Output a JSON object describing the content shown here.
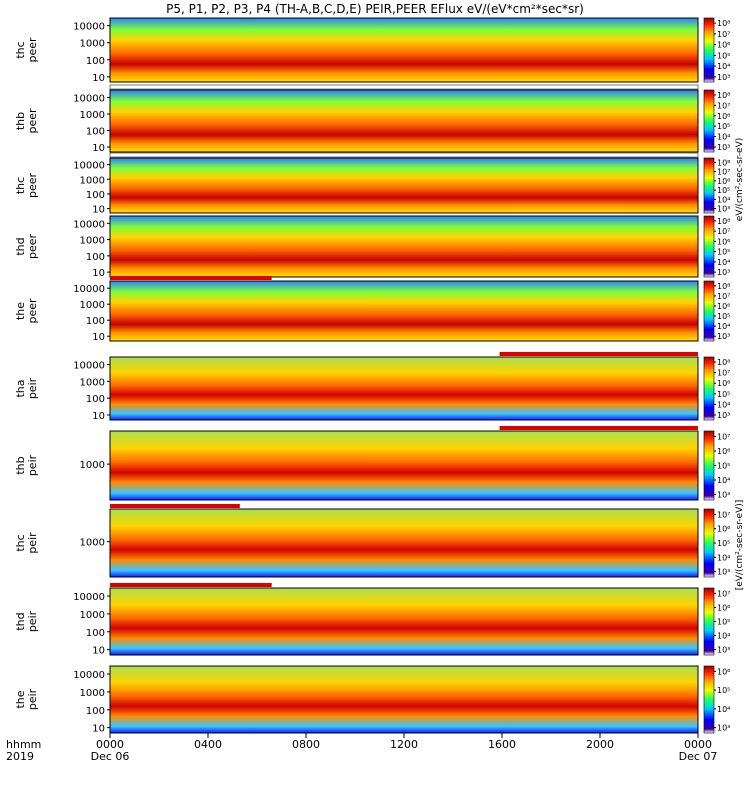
{
  "title": "P5, P1, P2, P3, P4 (TH-A,B,C,D,E) PEIR,PEER EFlux eV/(eV*cm²*sec*sr)",
  "colorbar_label_peer": "eV/(cm²-sec-sr-eV)",
  "colorbar_label_peir": "[eV/(cm²-sec-sr-eV)]",
  "colors": {
    "low": "#1e40ff",
    "mid": "#7cff3a",
    "high": "#d30000",
    "flag": "#e00000"
  },
  "chart_data": {
    "type": "heatmap",
    "x_axis": {
      "tick_labels": [
        "0000",
        "0400",
        "0800",
        "1200",
        "1600",
        "2000",
        "0000"
      ],
      "row_label": "hhmm",
      "year_label": "2019",
      "date_labels": [
        "Dec 06",
        "Dec 07"
      ],
      "range_hours": [
        0,
        24
      ]
    },
    "panels": [
      {
        "ylabel": "thc peer",
        "yticks": [
          "10000",
          "1000",
          "100",
          "10"
        ],
        "cbticks": [
          "10⁸",
          "10⁷",
          "10⁶",
          "10⁵",
          "10⁴",
          "10³"
        ],
        "flags": []
      },
      {
        "ylabel": "thb peer",
        "yticks": [
          "10000",
          "1000",
          "100",
          "10"
        ],
        "cbticks": [
          "10⁸",
          "10⁷",
          "10⁶",
          "10⁵",
          "10⁴",
          "10³"
        ],
        "flags": [
          {
            "start": 0,
            "end": 24,
            "color": "white"
          }
        ]
      },
      {
        "ylabel": "thc peer",
        "yticks": [
          "10000",
          "1000",
          "100",
          "10"
        ],
        "cbticks": [
          "10⁸",
          "10⁷",
          "10⁶",
          "10⁵",
          "10⁴",
          "10³"
        ],
        "flags": [
          {
            "start": 0,
            "end": 24,
            "color": "white"
          }
        ]
      },
      {
        "ylabel": "thd peer",
        "yticks": [
          "10000",
          "1000",
          "100",
          "10"
        ],
        "cbticks": [
          "10⁸",
          "10⁷",
          "10⁶",
          "10⁵",
          "10⁴",
          "10³"
        ],
        "flags": []
      },
      {
        "ylabel": "the peer",
        "yticks": [
          "10000",
          "1000",
          "100",
          "10"
        ],
        "cbticks": [
          "10⁸",
          "10⁷",
          "10⁶",
          "10⁵",
          "10⁴",
          "10³"
        ],
        "flags": [
          {
            "start": 0,
            "end": 6.6,
            "color": "red"
          }
        ]
      },
      {
        "ylabel": "tha peir",
        "yticks": [
          "10000",
          "1000",
          "100",
          "10"
        ],
        "cbticks": [
          "10⁸",
          "10⁷",
          "10⁶",
          "10⁵",
          "10⁴",
          "10³"
        ],
        "flags": [
          {
            "start": 15.9,
            "end": 24,
            "color": "red"
          }
        ]
      },
      {
        "ylabel": "thb peir",
        "yticks": [
          "1000"
        ],
        "cbticks": [
          "10⁷",
          "10⁶",
          "10⁵",
          "10⁴",
          "10³"
        ],
        "flags": [
          {
            "start": 15.9,
            "end": 24,
            "color": "red"
          }
        ]
      },
      {
        "ylabel": "thc peir",
        "yticks": [
          "1000"
        ],
        "cbticks": [
          "10⁷",
          "10⁶",
          "10⁵",
          "10⁴",
          "10³"
        ],
        "flags": [
          {
            "start": 0,
            "end": 5.3,
            "color": "red"
          }
        ]
      },
      {
        "ylabel": "thd peir",
        "yticks": [
          "10000",
          "1000",
          "100",
          "10"
        ],
        "cbticks": [
          "10⁷",
          "10⁶",
          "10⁵",
          "10⁴",
          "10³"
        ],
        "flags": [
          {
            "start": 0,
            "end": 6.6,
            "color": "red"
          }
        ]
      },
      {
        "ylabel": "the peir",
        "yticks": [
          "10000",
          "1000",
          "100",
          "10"
        ],
        "cbticks": [
          "10⁶",
          "10⁵",
          "10⁴",
          "10³"
        ],
        "flags": []
      }
    ]
  }
}
